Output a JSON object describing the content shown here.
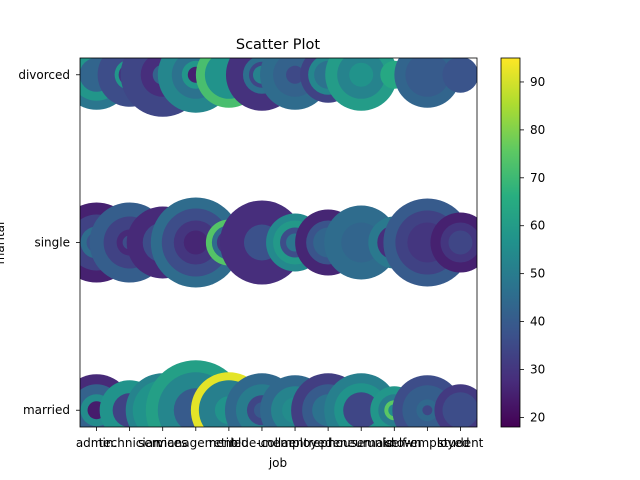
{
  "chart_data": {
    "type": "scatter",
    "title": "Scatter Plot",
    "xlabel": "job",
    "ylabel": "marital",
    "x_categories": [
      "admin.",
      "technician",
      "services",
      "management",
      "retired",
      "blue-collar",
      "unemployed",
      "entrepreneur",
      "housemaid",
      "unknown",
      "self-employed",
      "student"
    ],
    "y_categories": [
      "married",
      "single",
      "divorced"
    ],
    "color_variable_range": [
      18,
      95
    ],
    "colorbar_ticks": [
      20,
      30,
      40,
      50,
      60,
      70,
      80,
      90
    ],
    "colormap": "viridis",
    "points": [
      {
        "job": "admin.",
        "marital": "married",
        "size": 36,
        "color": 27
      },
      {
        "job": "admin.",
        "marital": "married",
        "size": 26,
        "color": 42
      },
      {
        "job": "admin.",
        "marital": "married",
        "size": 16,
        "color": 55
      },
      {
        "job": "admin.",
        "marital": "married",
        "size": 9,
        "color": 24
      },
      {
        "job": "admin.",
        "marital": "single",
        "size": 40,
        "color": 25
      },
      {
        "job": "admin.",
        "marital": "single",
        "size": 28,
        "color": 33
      },
      {
        "job": "admin.",
        "marital": "single",
        "size": 16,
        "color": 45
      },
      {
        "job": "admin.",
        "marital": "single",
        "size": 10,
        "color": 38
      },
      {
        "job": "admin.",
        "marital": "divorced",
        "size": 35,
        "color": 48
      },
      {
        "job": "admin.",
        "marital": "divorced",
        "size": 26,
        "color": 58
      },
      {
        "job": "admin.",
        "marital": "divorced",
        "size": 17,
        "color": 43
      },
      {
        "job": "technician",
        "marital": "married",
        "size": 30,
        "color": 57
      },
      {
        "job": "technician",
        "marital": "married",
        "size": 17,
        "color": 33
      },
      {
        "job": "technician",
        "marital": "single",
        "size": 40,
        "color": 41
      },
      {
        "job": "technician",
        "marital": "single",
        "size": 26,
        "color": 33
      },
      {
        "job": "technician",
        "marital": "single",
        "size": 13,
        "color": 27
      },
      {
        "job": "technician",
        "marital": "single",
        "size": 7,
        "color": 36
      },
      {
        "job": "technician",
        "marital": "divorced",
        "size": 32,
        "color": 36
      },
      {
        "job": "technician",
        "marital": "divorced",
        "size": 15,
        "color": 58
      },
      {
        "job": "technician",
        "marital": "divorced",
        "size": 11,
        "color": 30
      },
      {
        "job": "technician",
        "marital": "divorced",
        "size": 6,
        "color": 54
      },
      {
        "job": "services",
        "marital": "married",
        "size": 37,
        "color": 52
      },
      {
        "job": "services",
        "marital": "married",
        "size": 30,
        "color": 57
      },
      {
        "job": "services",
        "marital": "married",
        "size": 12,
        "color": 48
      },
      {
        "job": "services",
        "marital": "married",
        "size": 8,
        "color": 22
      },
      {
        "job": "services",
        "marital": "single",
        "size": 36,
        "color": 27
      },
      {
        "job": "services",
        "marital": "single",
        "size": 20,
        "color": 36
      },
      {
        "job": "services",
        "marital": "divorced",
        "size": 42,
        "color": 34
      },
      {
        "job": "services",
        "marital": "divorced",
        "size": 22,
        "color": 28
      },
      {
        "job": "services",
        "marital": "divorced",
        "size": 10,
        "color": 42
      },
      {
        "job": "services",
        "marital": "divorced",
        "size": 4,
        "color": 57
      },
      {
        "job": "management",
        "marital": "married",
        "size": 50,
        "color": 61
      },
      {
        "job": "management",
        "marital": "married",
        "size": 38,
        "color": 53
      },
      {
        "job": "management",
        "marital": "married",
        "size": 22,
        "color": 40
      },
      {
        "job": "management",
        "marital": "single",
        "size": 45,
        "color": 45
      },
      {
        "job": "management",
        "marital": "single",
        "size": 34,
        "color": 36
      },
      {
        "job": "management",
        "marital": "single",
        "size": 22,
        "color": 30
      },
      {
        "job": "management",
        "marital": "single",
        "size": 12,
        "color": 26
      },
      {
        "job": "management",
        "marital": "divorced",
        "size": 38,
        "color": 53
      },
      {
        "job": "management",
        "marital": "divorced",
        "size": 24,
        "color": 47
      },
      {
        "job": "management",
        "marital": "divorced",
        "size": 14,
        "color": 58
      },
      {
        "job": "management",
        "marital": "divorced",
        "size": 8,
        "color": 25
      },
      {
        "job": "retired",
        "marital": "married",
        "size": 38,
        "color": 92
      },
      {
        "job": "retired",
        "marital": "married",
        "size": 30,
        "color": 51
      },
      {
        "job": "retired",
        "marital": "married",
        "size": 14,
        "color": 57
      },
      {
        "job": "retired",
        "marital": "single",
        "size": 23,
        "color": 74
      },
      {
        "job": "retired",
        "marital": "single",
        "size": 17,
        "color": 45
      },
      {
        "job": "retired",
        "marital": "single",
        "size": 12,
        "color": 30
      },
      {
        "job": "retired",
        "marital": "divorced",
        "size": 33,
        "color": 72
      },
      {
        "job": "retired",
        "marital": "divorced",
        "size": 24,
        "color": 57
      },
      {
        "job": "blue-collar",
        "marital": "married",
        "size": 37,
        "color": 44
      },
      {
        "job": "blue-collar",
        "marital": "married",
        "size": 26,
        "color": 50
      },
      {
        "job": "blue-collar",
        "marital": "married",
        "size": 15,
        "color": 34
      },
      {
        "job": "blue-collar",
        "marital": "married",
        "size": 8,
        "color": 40
      },
      {
        "job": "blue-collar",
        "marital": "single",
        "size": 42,
        "color": 28
      },
      {
        "job": "blue-collar",
        "marital": "single",
        "size": 18,
        "color": 37
      },
      {
        "job": "blue-collar",
        "marital": "divorced",
        "size": 36,
        "color": 29
      },
      {
        "job": "blue-collar",
        "marital": "divorced",
        "size": 19,
        "color": 46
      },
      {
        "job": "blue-collar",
        "marital": "divorced",
        "size": 13,
        "color": 34
      },
      {
        "job": "blue-collar",
        "marital": "divorced",
        "size": 9,
        "color": 52
      },
      {
        "job": "unemployed",
        "marital": "married",
        "size": 35,
        "color": 44
      },
      {
        "job": "unemployed",
        "marital": "married",
        "size": 24,
        "color": 52
      },
      {
        "job": "unemployed",
        "marital": "married",
        "size": 13,
        "color": 55
      },
      {
        "job": "unemployed",
        "marital": "single",
        "size": 29,
        "color": 54
      },
      {
        "job": "unemployed",
        "marital": "single",
        "size": 22,
        "color": 59
      },
      {
        "job": "unemployed",
        "marital": "single",
        "size": 15,
        "color": 36
      },
      {
        "job": "unemployed",
        "marital": "single",
        "size": 9,
        "color": 48
      },
      {
        "job": "unemployed",
        "marital": "divorced",
        "size": 35,
        "color": 45
      },
      {
        "job": "unemployed",
        "marital": "divorced",
        "size": 22,
        "color": 42
      },
      {
        "job": "unemployed",
        "marital": "divorced",
        "size": 9,
        "color": 35
      },
      {
        "job": "entrepreneur",
        "marital": "married",
        "size": 37,
        "color": 32
      },
      {
        "job": "entrepreneur",
        "marital": "married",
        "size": 26,
        "color": 40
      },
      {
        "job": "entrepreneur",
        "marital": "married",
        "size": 16,
        "color": 47
      },
      {
        "job": "entrepreneur",
        "marital": "single",
        "size": 33,
        "color": 26
      },
      {
        "job": "entrepreneur",
        "marital": "single",
        "size": 22,
        "color": 38
      },
      {
        "job": "entrepreneur",
        "marital": "single",
        "size": 15,
        "color": 43
      },
      {
        "job": "entrepreneur",
        "marital": "divorced",
        "size": 28,
        "color": 33
      },
      {
        "job": "entrepreneur",
        "marital": "divorced",
        "size": 20,
        "color": 53
      },
      {
        "job": "entrepreneur",
        "marital": "divorced",
        "size": 14,
        "color": 47
      },
      {
        "job": "housemaid",
        "marital": "married",
        "size": 37,
        "color": 51
      },
      {
        "job": "housemaid",
        "marital": "married",
        "size": 27,
        "color": 57
      },
      {
        "job": "housemaid",
        "marital": "married",
        "size": 18,
        "color": 34
      },
      {
        "job": "housemaid",
        "marital": "single",
        "size": 37,
        "color": 45
      },
      {
        "job": "housemaid",
        "marital": "single",
        "size": 20,
        "color": 43
      },
      {
        "job": "housemaid",
        "marital": "divorced",
        "size": 36,
        "color": 60
      },
      {
        "job": "housemaid",
        "marital": "divorced",
        "size": 24,
        "color": 52
      },
      {
        "job": "housemaid",
        "marital": "divorced",
        "size": 12,
        "color": 57
      },
      {
        "job": "unknown",
        "marital": "married",
        "size": 24,
        "color": 58
      },
      {
        "job": "unknown",
        "marital": "married",
        "size": 16,
        "color": 50
      },
      {
        "job": "unknown",
        "marital": "married",
        "size": 10,
        "color": 75
      },
      {
        "job": "unknown",
        "marital": "married",
        "size": 6,
        "color": 55
      },
      {
        "job": "unknown",
        "marital": "single",
        "size": 26,
        "color": 49
      },
      {
        "job": "unknown",
        "marital": "single",
        "size": 17,
        "color": 28
      },
      {
        "job": "unknown",
        "marital": "single",
        "size": 8,
        "color": 62
      },
      {
        "job": "unknown",
        "marital": "divorced",
        "size": 14,
        "color": 64
      },
      {
        "job": "self-employed",
        "marital": "married",
        "size": 35,
        "color": 36
      },
      {
        "job": "self-employed",
        "marital": "married",
        "size": 25,
        "color": 41
      },
      {
        "job": "self-employed",
        "marital": "married",
        "size": 11,
        "color": 44
      },
      {
        "job": "self-employed",
        "marital": "married",
        "size": 5,
        "color": 34
      },
      {
        "job": "self-employed",
        "marital": "single",
        "size": 44,
        "color": 40
      },
      {
        "job": "self-employed",
        "marital": "single",
        "size": 32,
        "color": 33
      },
      {
        "job": "self-employed",
        "marital": "single",
        "size": 20,
        "color": 30
      },
      {
        "job": "self-employed",
        "marital": "divorced",
        "size": 33,
        "color": 43
      },
      {
        "job": "self-employed",
        "marital": "divorced",
        "size": 22,
        "color": 40
      },
      {
        "job": "student",
        "marital": "married",
        "size": 26,
        "color": 31
      },
      {
        "job": "student",
        "marital": "married",
        "size": 18,
        "color": 36
      },
      {
        "job": "student",
        "marital": "single",
        "size": 30,
        "color": 25
      },
      {
        "job": "student",
        "marital": "single",
        "size": 20,
        "color": 30
      },
      {
        "job": "student",
        "marital": "single",
        "size": 12,
        "color": 34
      },
      {
        "job": "student",
        "marital": "divorced",
        "size": 18,
        "color": 38
      }
    ]
  }
}
